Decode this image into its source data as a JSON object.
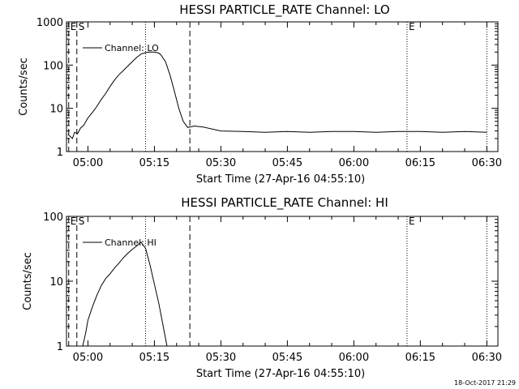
{
  "timestamp": "18-Oct-2017 21:29",
  "chart_data": [
    {
      "type": "line",
      "title": "HESSI PARTICLE_RATE Channel: LO",
      "xlabel": "Start Time (27-Apr-16 04:55:10)",
      "ylabel": "Counts/sec",
      "yscale": "log",
      "ylim": [
        1,
        1000
      ],
      "xlim": [
        "04:55:10",
        "06:32:30"
      ],
      "x_ticks": [
        "05:00",
        "05:15",
        "05:30",
        "05:45",
        "06:00",
        "06:15",
        "06:30"
      ],
      "y_ticks": [
        "1",
        "10",
        "100",
        "1000"
      ],
      "legend": {
        "position": "top-left",
        "entries": [
          "Channel: LO"
        ]
      },
      "markers": [
        {
          "label": "E",
          "time": "04:55:40",
          "style": "dashed"
        },
        {
          "label": "S",
          "time": "04:57:30",
          "style": "dashed"
        },
        {
          "label": "",
          "time": "05:13:00",
          "style": "dotted"
        },
        {
          "label": "",
          "time": "05:23:00",
          "style": "dashed"
        },
        {
          "label": "E",
          "time": "06:12:00",
          "style": "dotted"
        },
        {
          "label": "",
          "time": "06:30:00",
          "style": "dotted"
        }
      ],
      "series": [
        {
          "name": "Channel: LO",
          "x": [
            "04:55:30",
            "04:56:30",
            "04:57:00",
            "04:57:40",
            "04:58:20",
            "04:59:00",
            "05:00:00",
            "05:01:00",
            "05:02:00",
            "05:03:00",
            "05:04:00",
            "05:05:00",
            "05:06:00",
            "05:07:00",
            "05:08:00",
            "05:09:00",
            "05:10:00",
            "05:11:00",
            "05:12:00",
            "05:13:00",
            "05:14:00",
            "05:15:00",
            "05:16:00",
            "05:16:30",
            "05:17:30",
            "05:18:30",
            "05:19:30",
            "05:20:30",
            "05:21:30",
            "05:22:30",
            "05:24:00",
            "05:26:00",
            "05:30:00",
            "05:35:00",
            "05:40:00",
            "05:45:00",
            "05:50:00",
            "05:55:00",
            "06:00:00",
            "06:05:00",
            "06:10:00",
            "06:15:00",
            "06:20:00",
            "06:25:00",
            "06:30:00"
          ],
          "y": [
            2.5,
            2.0,
            2.8,
            2.6,
            3.5,
            4.0,
            6,
            8,
            11,
            16,
            22,
            32,
            45,
            60,
            75,
            95,
            120,
            150,
            180,
            195,
            200,
            200,
            190,
            170,
            120,
            60,
            25,
            10,
            5,
            3.6,
            3.9,
            3.7,
            3.0,
            2.9,
            2.8,
            2.9,
            2.8,
            2.9,
            2.9,
            2.8,
            2.9,
            2.9,
            2.8,
            2.9,
            2.8
          ]
        }
      ]
    },
    {
      "type": "line",
      "title": "HESSI PARTICLE_RATE Channel: HI",
      "xlabel": "Start Time (27-Apr-16 04:55:10)",
      "ylabel": "Counts/sec",
      "yscale": "log",
      "ylim": [
        1,
        100
      ],
      "xlim": [
        "04:55:10",
        "06:32:30"
      ],
      "x_ticks": [
        "05:00",
        "05:15",
        "05:30",
        "05:45",
        "06:00",
        "06:15",
        "06:30"
      ],
      "y_ticks": [
        "1",
        "10",
        "100"
      ],
      "legend": {
        "position": "top-left",
        "entries": [
          "Channel: HI"
        ]
      },
      "markers": [
        {
          "label": "E",
          "time": "04:55:40",
          "style": "dashed"
        },
        {
          "label": "S",
          "time": "04:57:30",
          "style": "dashed"
        },
        {
          "label": "",
          "time": "05:13:00",
          "style": "dotted"
        },
        {
          "label": "",
          "time": "05:23:00",
          "style": "dashed"
        },
        {
          "label": "E",
          "time": "06:12:00",
          "style": "dotted"
        },
        {
          "label": "",
          "time": "06:30:00",
          "style": "dotted"
        }
      ],
      "series": [
        {
          "name": "Channel: HI",
          "x": [
            "04:58:50",
            "04:59:30",
            "05:00:00",
            "05:01:00",
            "05:02:00",
            "05:03:00",
            "05:04:00",
            "05:05:00",
            "05:06:00",
            "05:07:00",
            "05:08:00",
            "05:09:00",
            "05:10:00",
            "05:11:00",
            "05:12:00",
            "05:13:00",
            "05:14:00",
            "05:15:00",
            "05:16:00",
            "05:17:00",
            "05:17:50"
          ],
          "y": [
            1,
            1.6,
            2.5,
            4,
            6,
            8.5,
            11,
            13,
            16,
            19,
            23,
            27,
            31,
            35,
            40,
            32,
            18,
            9,
            4.5,
            2,
            1
          ]
        }
      ]
    }
  ]
}
